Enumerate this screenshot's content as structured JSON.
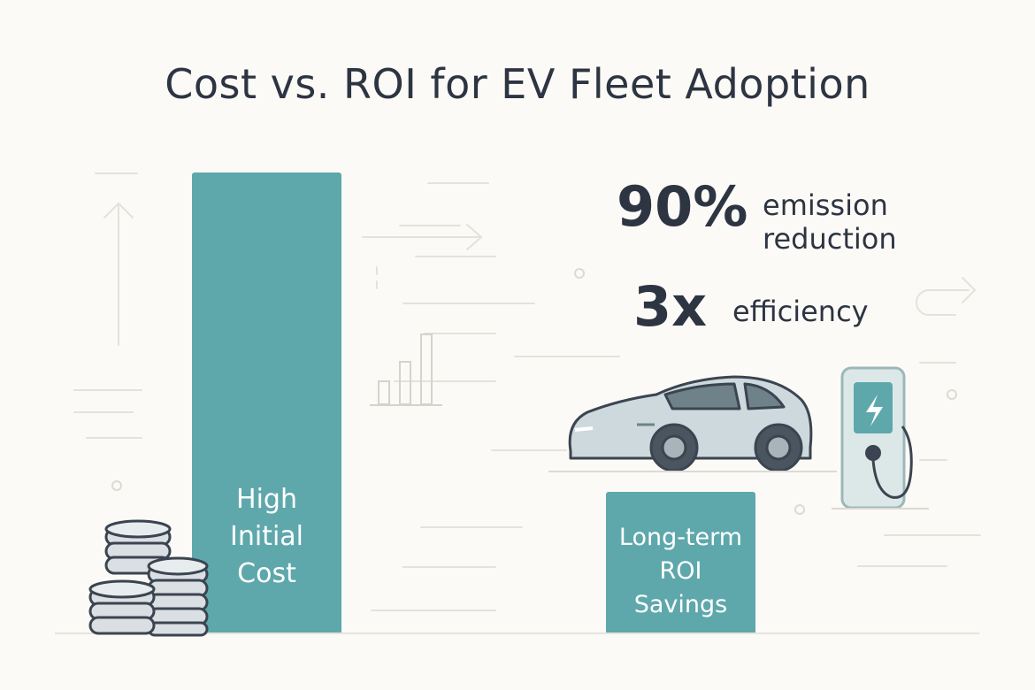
{
  "title": "Cost vs. ROI for EV Fleet Adoption",
  "bars": {
    "initial_cost": {
      "lines": [
        "High",
        "Initial",
        "Cost"
      ]
    },
    "roi": {
      "lines": [
        "Long-term",
        "ROI",
        "Savings"
      ]
    }
  },
  "stats": [
    {
      "value": "90%",
      "label_lines": [
        "emission",
        "reduction"
      ]
    },
    {
      "value": "3x",
      "label_lines": [
        "efficiency"
      ]
    }
  ],
  "colors": {
    "bar": "#5ea8ac",
    "text": "#2d3442",
    "car_body": "#cdd9dd",
    "charger": "#dce8e8",
    "charger_screen": "#5ea8ac",
    "coins": "#d9dfe3"
  },
  "icons": [
    "coin-stack-icon",
    "electric-car-icon",
    "charging-station-icon",
    "lightning-bolt-icon",
    "mini-bar-chart-icon"
  ]
}
